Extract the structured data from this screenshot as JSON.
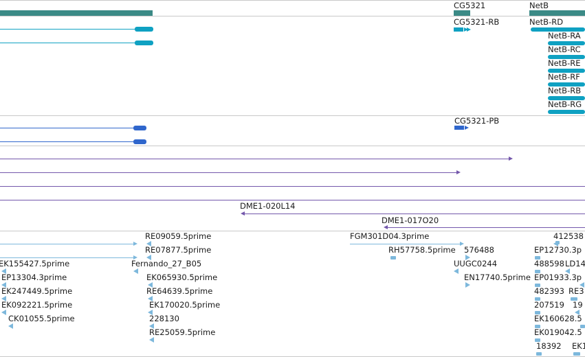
{
  "track_colors": {
    "gene": "#3b8a86",
    "mrna": "#0fa1c2",
    "protein": "#2f66cc",
    "cdna": "#7357ab",
    "est": "#7db8dc"
  },
  "gene_track": {
    "genes": [
      "CG5321",
      "NetB"
    ]
  },
  "mrna_track": {
    "transcripts": [
      "CG5321-RB",
      "NetB-RD",
      "NetB-RA",
      "NetB-RC",
      "NetB-RE",
      "NetB-RF",
      "NetB-RB",
      "NetB-RG"
    ]
  },
  "protein_track": {
    "proteins": [
      "CG5321-PB"
    ]
  },
  "cdna_track": {
    "clones": [
      "DME1-020L14",
      "DME1-017O20"
    ]
  },
  "est_track": {
    "ests": [
      "RE09059.5prime",
      "RE07877.5prime",
      "FGM301D04.3prime",
      "412538",
      "RH57758.5prime",
      "576488",
      "EP12730.3p",
      "EK155427.5prime",
      "Fernando_27_B05",
      "UUGC0244",
      "488598",
      "LD14",
      "EP13304.3prime",
      "EK065930.5prime",
      "EN17740.5prime",
      "EP01933.3p",
      "EK247449.5prime",
      "RE64639.5prime",
      "482393",
      "RE3",
      "EK092221.5prime",
      "EK170020.5prime",
      "207519",
      "19",
      "CK01055.5prime",
      "228130",
      "EK160628.5",
      "RE25059.5prime",
      "EK019042.5",
      "18392",
      "EK1"
    ]
  }
}
